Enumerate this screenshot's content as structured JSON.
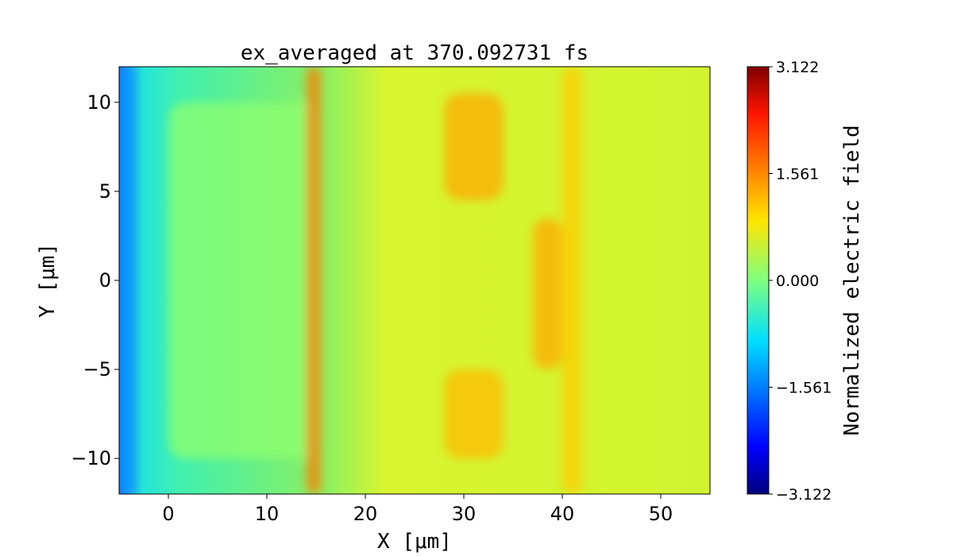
{
  "chart_data": {
    "type": "heatmap",
    "title": "ex_averaged at 370.092731 fs",
    "xlabel": "X [μm]",
    "ylabel": "Y [μm]",
    "xlim": [
      -5,
      55
    ],
    "ylim": [
      -12,
      12
    ],
    "xticks": [
      0,
      10,
      20,
      30,
      40,
      50
    ],
    "yticks": [
      -10,
      -5,
      0,
      5,
      10
    ],
    "xtick_labels": [
      "0",
      "10",
      "20",
      "30",
      "40",
      "50"
    ],
    "ytick_labels": [
      "−10",
      "−5",
      "0",
      "5",
      "10"
    ],
    "colormap": "jet",
    "colorbar": {
      "label": "Normalized electric field",
      "range": [
        -3.122,
        3.122
      ],
      "ticks": [
        -3.122,
        -1.561,
        0.0,
        1.561,
        3.122
      ],
      "tick_labels": [
        "−3.122",
        "−1.561",
        "0.000",
        "1.561",
        "3.122"
      ]
    },
    "features": [
      {
        "name": "left boundary field",
        "x": [
          -5,
          -3.5
        ],
        "y": [
          -12,
          12
        ],
        "value": -1.4
      },
      {
        "name": "target region",
        "x": [
          0,
          15
        ],
        "y": [
          -10,
          10
        ],
        "value": 0.1
      },
      {
        "name": "target front surface",
        "x": [
          14,
          15.5
        ],
        "y": [
          -12,
          12
        ],
        "value": 1.6
      },
      {
        "name": "wavefront lobe",
        "x": [
          28,
          34
        ],
        "y": [
          4.5,
          10.5
        ],
        "value": 1.3
      },
      {
        "name": "wavefront lobe",
        "x": [
          28,
          34
        ],
        "y": [
          -10,
          -5
        ],
        "value": 1.2
      },
      {
        "name": "wavefront lobe",
        "x": [
          37,
          40
        ],
        "y": [
          -5,
          3.5
        ],
        "value": 1.3
      },
      {
        "name": "wavefront lobe",
        "x": [
          40,
          42
        ],
        "y": [
          -12,
          12
        ],
        "value": 1.1
      }
    ]
  }
}
